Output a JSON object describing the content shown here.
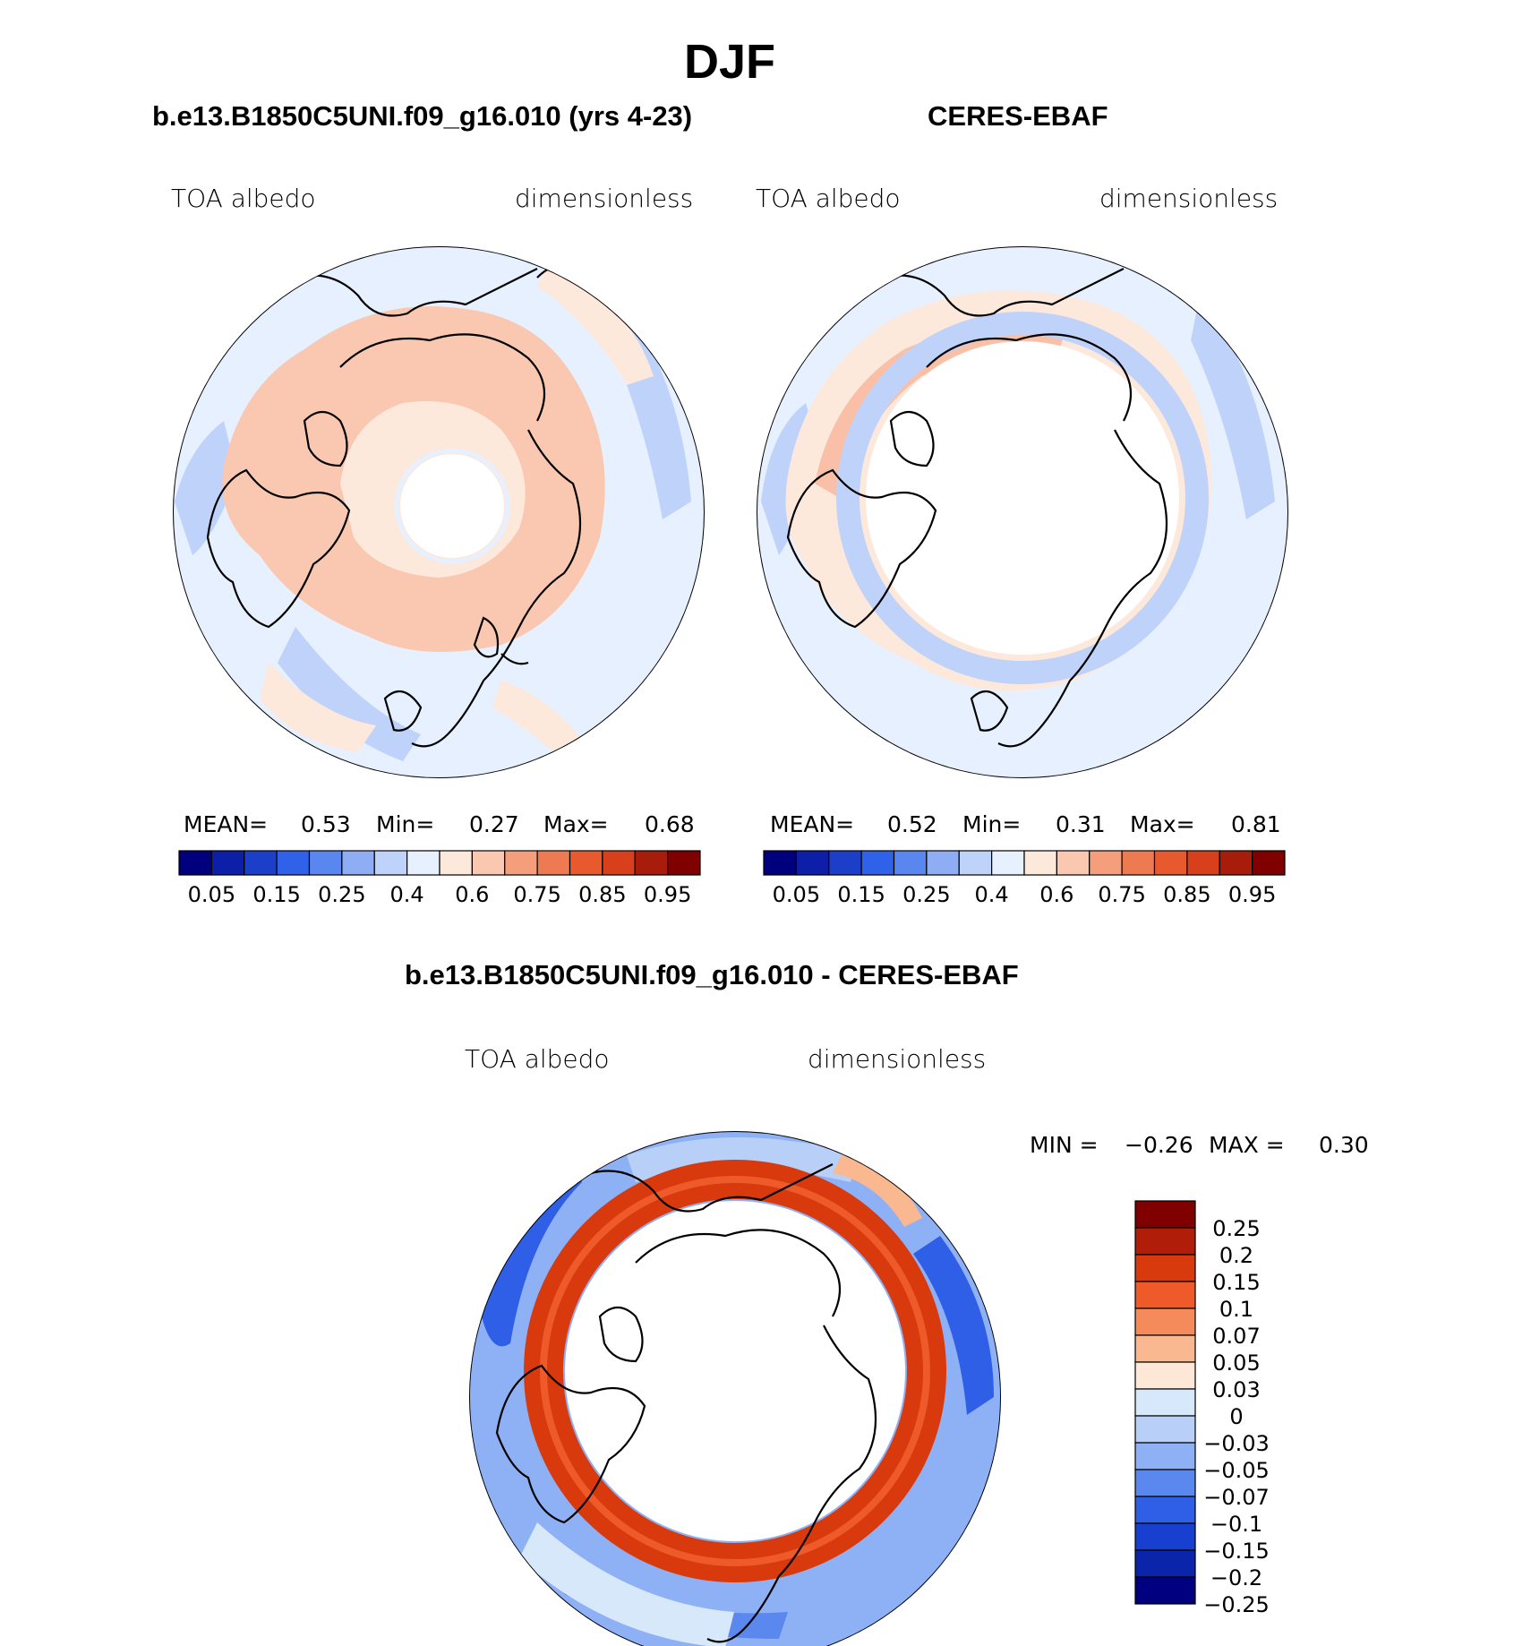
{
  "title": "DJF",
  "panels": {
    "model": {
      "case_title": "b.e13.B1850C5UNI.f09_g16.010 (yrs 4-23)",
      "var_label": "TOA albedo",
      "units": "dimensionless",
      "stats": {
        "mean_label": "MEAN=",
        "mean": "0.53",
        "min_label": "Min=",
        "min": "0.27",
        "max_label": "Max=",
        "max": "0.68"
      }
    },
    "obs": {
      "case_title": "CERES-EBAF",
      "var_label": "TOA albedo",
      "units": "dimensionless",
      "stats": {
        "mean_label": "MEAN=",
        "mean": "0.52",
        "min_label": "Min=",
        "min": "0.31",
        "max_label": "Max=",
        "max": "0.81"
      }
    },
    "diff": {
      "case_title": "b.e13.B1850C5UNI.f09_g16.010 - CERES-EBAF",
      "var_label": "TOA albedo",
      "units": "dimensionless",
      "stats": {
        "min_label": "MIN =",
        "min": "−0.26",
        "max_label": "MAX =",
        "max": "0.30"
      }
    }
  },
  "chart_data": [
    {
      "type": "heatmap",
      "projection": "north-polar-stereographic",
      "title": "b.e13.B1850C5UNI.f09_g16.010 (yrs 4-23)",
      "variable": "TOA albedo",
      "units": "dimensionless",
      "mean": 0.53,
      "min": 0.27,
      "max": 0.68,
      "colorbar": {
        "tick_labels": [
          "0.05",
          "0.15",
          "0.25",
          "0.4",
          "0.6",
          "0.75",
          "0.85",
          "0.95"
        ],
        "colors": [
          "#00007f",
          "#0d1fa8",
          "#1b3fc9",
          "#2f62e8",
          "#5a86f0",
          "#8eadf5",
          "#bfd2fa",
          "#e6f0ff",
          "#fde8dc",
          "#fac8b0",
          "#f59e7c",
          "#ee7a52",
          "#e85a2e",
          "#d8401c",
          "#a81c0c",
          "#800000"
        ]
      },
      "pattern": {
        "pole_missing_radius_deg": 12,
        "land_albedo": "0.6-0.75",
        "ocean_albedo": "0.4-0.6"
      }
    },
    {
      "type": "heatmap",
      "projection": "north-polar-stereographic",
      "title": "CERES-EBAF",
      "variable": "TOA albedo",
      "units": "dimensionless",
      "mean": 0.52,
      "min": 0.31,
      "max": 0.81,
      "colorbar": {
        "tick_labels": [
          "0.05",
          "0.15",
          "0.25",
          "0.4",
          "0.6",
          "0.75",
          "0.85",
          "0.95"
        ],
        "colors": [
          "#00007f",
          "#0d1fa8",
          "#1b3fc9",
          "#2f62e8",
          "#5a86f0",
          "#8eadf5",
          "#bfd2fa",
          "#e6f0ff",
          "#fde8dc",
          "#fac8b0",
          "#f59e7c",
          "#ee7a52",
          "#e85a2e",
          "#d8401c",
          "#a81c0c",
          "#800000"
        ]
      },
      "pattern": {
        "pole_missing_radius_deg": 25,
        "land_albedo": "0.6-0.75",
        "ocean_albedo": "0.4-0.6"
      }
    },
    {
      "type": "heatmap",
      "projection": "north-polar-stereographic",
      "title": "b.e13.B1850C5UNI.f09_g16.010 - CERES-EBAF",
      "variable": "TOA albedo",
      "units": "dimensionless",
      "min": -0.26,
      "max": 0.3,
      "colorbar": {
        "tick_labels": [
          "0.25",
          "0.2",
          "0.15",
          "0.1",
          "0.07",
          "0.05",
          "0.03",
          "0",
          "−0.03",
          "−0.05",
          "−0.07",
          "−0.1",
          "−0.15",
          "−0.2",
          "−0.25"
        ],
        "colors": [
          "#800000",
          "#b01e0a",
          "#d93a0d",
          "#ee5a2a",
          "#f58a5a",
          "#fab890",
          "#fde8d8",
          "#d8e8fb",
          "#b8d0f8",
          "#8eb0f4",
          "#5a88ee",
          "#2f5fe6",
          "#1840d0",
          "#0a25aa",
          "#000080"
        ]
      },
      "pattern": {
        "pole_missing_radius_deg": 25,
        "positive_ring_at_deg": [
          25,
          31
        ],
        "positive_ring_value": "0.15-0.2"
      }
    }
  ]
}
